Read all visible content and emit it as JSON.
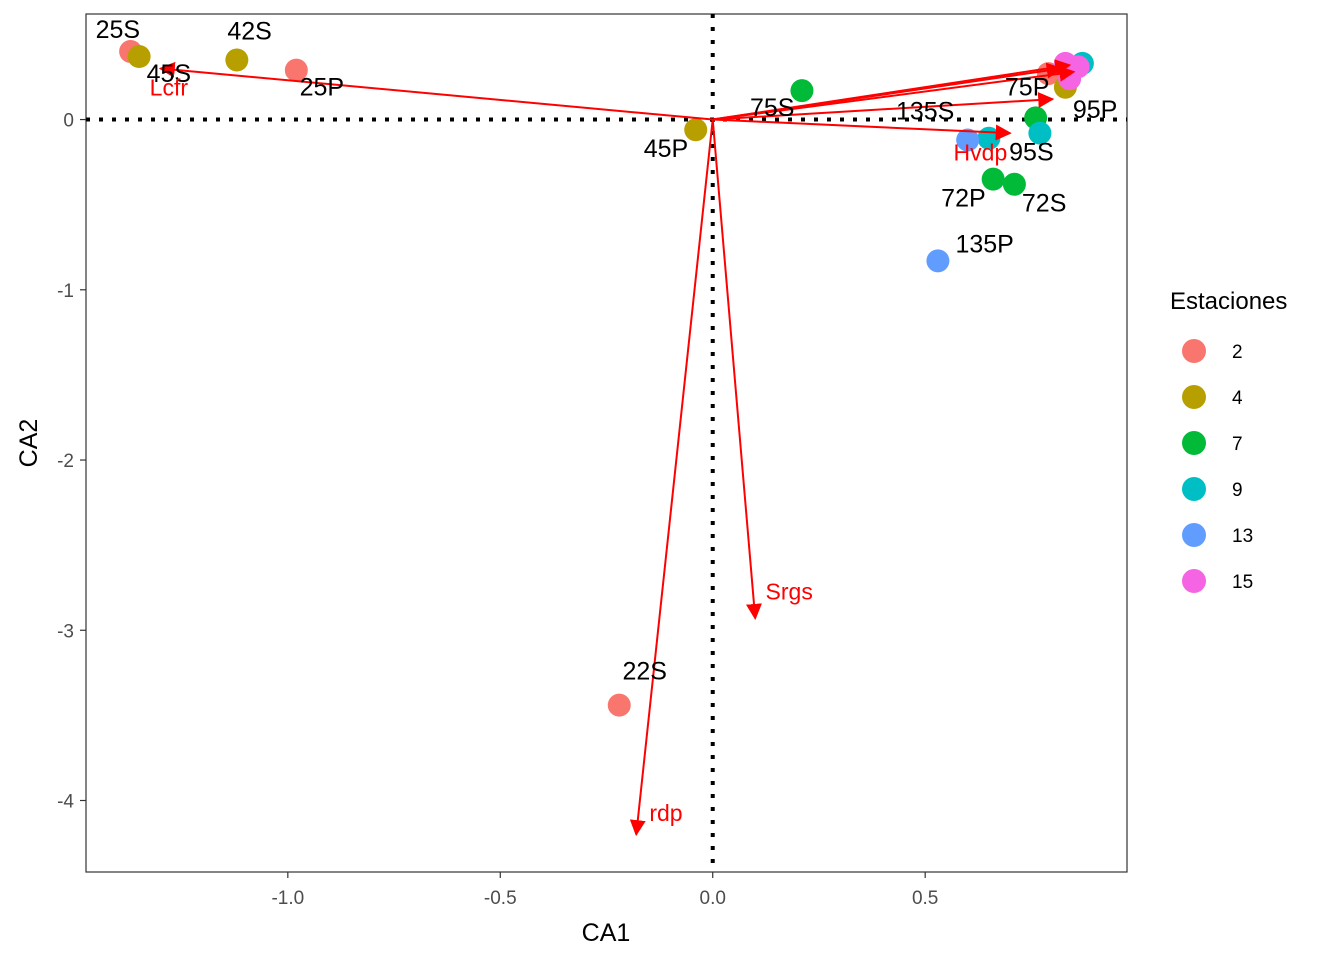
{
  "chart_data": {
    "type": "scatter",
    "xlabel": "CA1",
    "ylabel": "CA2",
    "xlim": [
      -1.475,
      0.975
    ],
    "ylim": [
      -4.42,
      0.62
    ],
    "x_ticks": [
      -1.0,
      -0.5,
      0.0,
      0.5
    ],
    "x_tick_labels": [
      "-1.0",
      "-0.5",
      "0.0",
      "0.5"
    ],
    "y_ticks": [
      -4,
      -3,
      -2,
      -1,
      0
    ],
    "y_tick_labels": [
      "-4",
      "-3",
      "-2",
      "-1",
      "0"
    ],
    "grid": false,
    "reference_lines": {
      "x": 0,
      "y": 0,
      "style": "dotted"
    },
    "legend": {
      "title": "Estaciones",
      "position": "right",
      "entries": [
        {
          "label": "2",
          "color": "#F8766D"
        },
        {
          "label": "4",
          "color": "#B79F00"
        },
        {
          "label": "7",
          "color": "#00BA38"
        },
        {
          "label": "9",
          "color": "#00BFC4"
        },
        {
          "label": "13",
          "color": "#619CFF"
        },
        {
          "label": "15",
          "color": "#F564E3"
        }
      ]
    },
    "points": [
      {
        "x": -1.37,
        "y": 0.4,
        "station": "2"
      },
      {
        "x": -0.98,
        "y": 0.29,
        "station": "2"
      },
      {
        "x": -0.22,
        "y": -3.44,
        "station": "2"
      },
      {
        "x": 0.79,
        "y": 0.27,
        "station": "2"
      },
      {
        "x": -1.35,
        "y": 0.37,
        "station": "4"
      },
      {
        "x": -1.12,
        "y": 0.35,
        "station": "4"
      },
      {
        "x": -0.04,
        "y": -0.06,
        "station": "4"
      },
      {
        "x": 0.83,
        "y": 0.19,
        "station": "4"
      },
      {
        "x": 0.21,
        "y": 0.17,
        "station": "7"
      },
      {
        "x": 0.76,
        "y": 0.01,
        "station": "7"
      },
      {
        "x": 0.66,
        "y": -0.35,
        "station": "7"
      },
      {
        "x": 0.71,
        "y": -0.38,
        "station": "7"
      },
      {
        "x": 0.65,
        "y": -0.11,
        "station": "9"
      },
      {
        "x": 0.77,
        "y": -0.08,
        "station": "9"
      },
      {
        "x": 0.87,
        "y": 0.33,
        "station": "9"
      },
      {
        "x": 0.6,
        "y": -0.12,
        "station": "13"
      },
      {
        "x": 0.53,
        "y": -0.83,
        "station": "13"
      },
      {
        "x": 0.83,
        "y": 0.33,
        "station": "15"
      },
      {
        "x": 0.86,
        "y": 0.31,
        "station": "15"
      },
      {
        "x": 0.84,
        "y": 0.24,
        "station": "15"
      }
    ],
    "point_labels": [
      {
        "text": "25S",
        "x": -1.4,
        "y": 0.48
      },
      {
        "text": "42S",
        "x": -1.09,
        "y": 0.47
      },
      {
        "text": "45S",
        "x": -1.28,
        "y": 0.22
      },
      {
        "text": "25P",
        "x": -0.92,
        "y": 0.14
      },
      {
        "text": "45P",
        "x": -0.11,
        "y": -0.22
      },
      {
        "text": "75S",
        "x": 0.14,
        "y": 0.02
      },
      {
        "text": "135S",
        "x": 0.5,
        "y": 0.0
      },
      {
        "text": "75P",
        "x": 0.74,
        "y": 0.14
      },
      {
        "text": "95P",
        "x": 0.9,
        "y": 0.01
      },
      {
        "text": "95S",
        "x": 0.75,
        "y": -0.24
      },
      {
        "text": "72P",
        "x": 0.59,
        "y": -0.51
      },
      {
        "text": "72S",
        "x": 0.78,
        "y": -0.54
      },
      {
        "text": "135P",
        "x": 0.64,
        "y": -0.78
      },
      {
        "text": "22S",
        "x": -0.16,
        "y": -3.29
      }
    ],
    "vectors": [
      {
        "name": "Lcfr",
        "x": -1.3,
        "y": 0.3,
        "label_x": -1.28,
        "label_y": 0.14
      },
      {
        "name": "Hvdp",
        "x": 0.7,
        "y": -0.08,
        "label_x": 0.63,
        "label_y": -0.24
      },
      {
        "name": "Srgs",
        "x": 0.1,
        "y": -2.93,
        "label_x": 0.18,
        "label_y": -2.82
      },
      {
        "name": "rdp",
        "x": -0.18,
        "y": -4.2,
        "label_x": -0.11,
        "label_y": -4.12
      },
      {
        "name": "",
        "x": 0.82,
        "y": 0.3
      },
      {
        "name": "",
        "x": 0.85,
        "y": 0.28
      },
      {
        "name": "",
        "x": 0.8,
        "y": 0.12
      },
      {
        "name": "",
        "x": 0.84,
        "y": 0.32
      }
    ]
  },
  "colors": {
    "vector": "#FF0000",
    "axis_text": "#4D4D4D"
  }
}
